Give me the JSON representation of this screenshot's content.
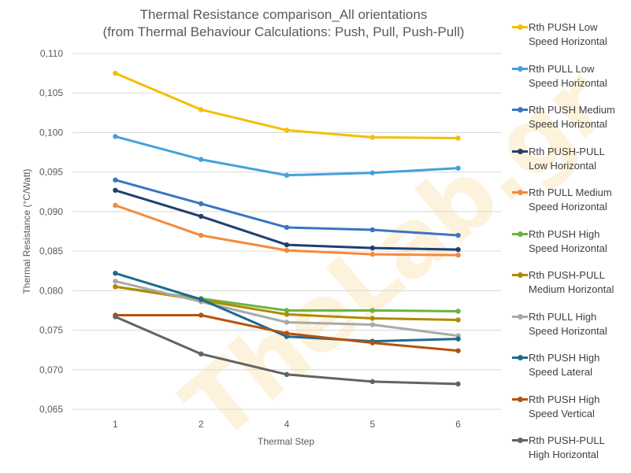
{
  "chart_data": {
    "type": "line",
    "title_line1": "Thermal Resistance comparison_All orientations",
    "title_line2": "(from Thermal Behaviour Calculations: Push, Pull,  Push-Pull)",
    "xlabel": "Thermal Step",
    "ylabel": "Thermal Resistance (°C/Watt)",
    "x": [
      "1",
      "2",
      "4",
      "5",
      "6"
    ],
    "ylim": [
      0.065,
      0.11
    ],
    "yticks": [
      "0,065",
      "0,070",
      "0,075",
      "0,080",
      "0,085",
      "0,090",
      "0,095",
      "0,100",
      "0,105",
      "0,110"
    ],
    "grid": true,
    "legend_position": "right",
    "watermark": "TheLab.gr",
    "series": [
      {
        "name_line1": "Rth PUSH Low",
        "name_line2": "Speed Horizontal",
        "color": "#f5be00",
        "values": [
          0.1075,
          0.1029,
          0.1003,
          0.0994,
          0.0993
        ]
      },
      {
        "name_line1": "Rth PULL Low",
        "name_line2": "Speed Horizontal",
        "color": "#45a0db",
        "values": [
          0.0995,
          0.0966,
          0.0946,
          0.0949,
          0.0955
        ]
      },
      {
        "name_line1": "Rth PUSH Medium",
        "name_line2": "Speed Horizontal",
        "color": "#3a75c2",
        "values": [
          0.094,
          0.091,
          0.088,
          0.0877,
          0.087
        ]
      },
      {
        "name_line1": "Rth PUSH-PULL",
        "name_line2": "Low Horizontal",
        "color": "#1f3f6e",
        "values": [
          0.0927,
          0.0894,
          0.0858,
          0.0854,
          0.0852
        ]
      },
      {
        "name_line1": "Rth PULL Medium",
        "name_line2": "Speed Horizontal",
        "color": "#f58a3a",
        "values": [
          0.0908,
          0.087,
          0.0851,
          0.0846,
          0.0845
        ]
      },
      {
        "name_line1": "Rth PUSH High",
        "name_line2": "Speed Horizontal",
        "color": "#6bb33e",
        "values": [
          0.0805,
          0.079,
          0.0775,
          0.0775,
          0.0774
        ]
      },
      {
        "name_line1": "Rth PUSH-PULL",
        "name_line2": "Medium Horizontal",
        "color": "#b08a00",
        "values": [
          0.0805,
          0.0788,
          0.077,
          0.0765,
          0.0763
        ]
      },
      {
        "name_line1": "Rth PULL High",
        "name_line2": "Speed Horizontal",
        "color": "#a9a9a9",
        "values": [
          0.0812,
          0.0786,
          0.076,
          0.0757,
          0.0743
        ]
      },
      {
        "name_line1": "Rth PUSH High",
        "name_line2": "Speed Lateral",
        "color": "#1d6b8f",
        "values": [
          0.0822,
          0.0789,
          0.0742,
          0.0736,
          0.0739
        ]
      },
      {
        "name_line1": "Rth PUSH High",
        "name_line2": "Speed Vertical",
        "color": "#b5520d",
        "values": [
          0.0769,
          0.0769,
          0.0746,
          0.0734,
          0.0724
        ]
      },
      {
        "name_line1": "Rth PUSH-PULL",
        "name_line2": "High Horizontal",
        "color": "#636363",
        "values": [
          0.0767,
          0.072,
          0.0694,
          0.0685,
          0.0682
        ]
      }
    ]
  }
}
